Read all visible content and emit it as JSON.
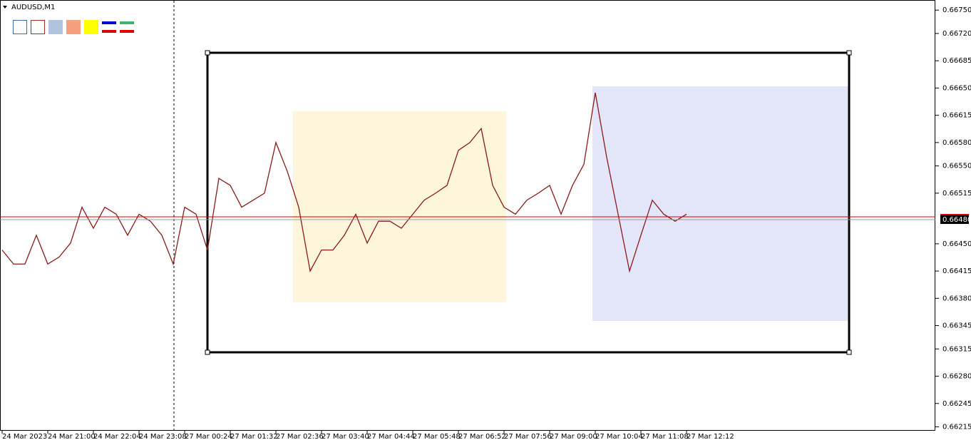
{
  "chart_data": {
    "type": "line",
    "title": "AUDUSD,M1",
    "categories": [
      "24 Mar 2023",
      null,
      null,
      null,
      "24 Mar 21:00",
      null,
      null,
      null,
      "24 Mar 22:04",
      null,
      null,
      null,
      "24 Mar 23:08",
      null,
      null,
      null,
      "27 Mar 00:24",
      null,
      null,
      null,
      "27 Mar 01:32",
      null,
      null,
      null,
      "27 Mar 02:36",
      null,
      null,
      null,
      "27 Mar 03:40",
      null,
      null,
      null,
      "27 Mar 04:44",
      null,
      null,
      null,
      "27 Mar 05:48",
      null,
      null,
      null,
      "27 Mar 06:52",
      null,
      null,
      null,
      "27 Mar 07:56",
      null,
      null,
      null,
      "27 Mar 09:00",
      null,
      null,
      null,
      "27 Mar 10:04",
      null,
      null,
      null,
      "27 Mar 11:08",
      null,
      null,
      null,
      "27 Mar 12:12"
    ],
    "series": [
      {
        "name": "AUDUSD",
        "color": "#8b1a1a",
        "values": [
          0.66442,
          0.66424,
          0.66424,
          0.66461,
          0.66424,
          0.66433,
          0.66451,
          0.66497,
          0.6647,
          0.66497,
          0.66488,
          0.66461,
          0.66488,
          0.66479,
          0.66461,
          0.66424,
          0.66497,
          0.66488,
          0.66442,
          0.66534,
          0.66525,
          0.66497,
          0.66506,
          0.66515,
          0.6658,
          0.66543,
          0.66497,
          0.66415,
          0.66442,
          0.66442,
          0.66461,
          0.66488,
          0.66451,
          0.66479,
          0.66479,
          0.6647,
          0.66488,
          0.66506,
          0.66515,
          0.66525,
          0.6657,
          0.6658,
          0.66598,
          0.66525,
          0.66497,
          0.66488,
          0.66506,
          0.66515,
          0.66525,
          0.66488,
          0.66525,
          0.66552,
          0.66644,
          0.66561,
          0.66488,
          0.66415,
          0.66461,
          0.66506,
          0.66488,
          0.66479,
          0.66488
        ]
      }
    ],
    "ylim": [
      0.6621,
      0.66763
    ],
    "yticks": [
      {
        "value": 0.6675,
        "label": "0.66750"
      },
      {
        "value": 0.6672,
        "label": "0.66720"
      },
      {
        "value": 0.66685,
        "label": "0.66685"
      },
      {
        "value": 0.6665,
        "label": "0.66650"
      },
      {
        "value": 0.66615,
        "label": "0.66615"
      },
      {
        "value": 0.6658,
        "label": "0.66580"
      },
      {
        "value": 0.6655,
        "label": "0.66550"
      },
      {
        "value": 0.66515,
        "label": "0.66515"
      },
      {
        "value": 0.6645,
        "label": "0.66450"
      },
      {
        "value": 0.66415,
        "label": "0.66415"
      },
      {
        "value": 0.6638,
        "label": "0.66380"
      },
      {
        "value": 0.66345,
        "label": "0.66345"
      },
      {
        "value": 0.66315,
        "label": "0.66315"
      },
      {
        "value": 0.6628,
        "label": "0.66280"
      },
      {
        "value": 0.66245,
        "label": "0.66245"
      },
      {
        "value": 0.66215,
        "label": "0.66215"
      }
    ],
    "current_price": {
      "value": 0.6648,
      "label": "0.66480"
    }
  }
}
